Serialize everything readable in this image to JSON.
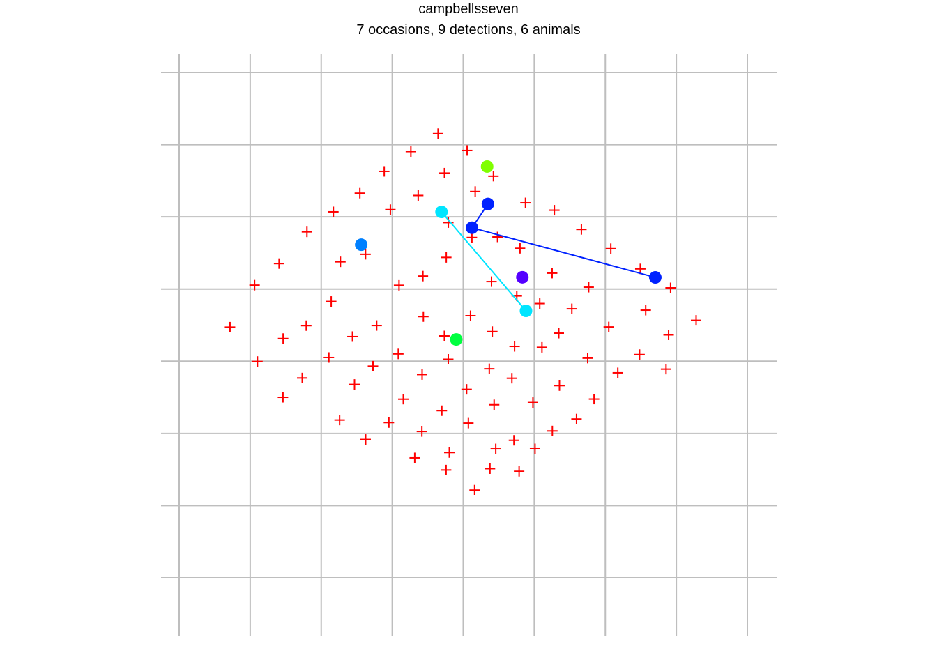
{
  "chart_data": {
    "type": "scatter",
    "title": "campbellsseven",
    "subtitle": "7 occasions, 9 detections, 6 animals",
    "grid": true,
    "xlim": [
      0,
      1
    ],
    "ylim": [
      0,
      1
    ],
    "trap_color": "#ff0000",
    "grid_color": "#bebebe",
    "traps": [
      [
        0.4557,
        0.8789
      ],
      [
        0.5068,
        0.8456
      ],
      [
        0.4078,
        0.8434
      ],
      [
        0.4669,
        0.8008
      ],
      [
        0.3609,
        0.8042
      ],
      [
        0.5531,
        0.7947
      ],
      [
        0.4207,
        0.7566
      ],
      [
        0.521,
        0.7644
      ],
      [
        0.318,
        0.7611
      ],
      [
        0.6095,
        0.742
      ],
      [
        0.2714,
        0.7242
      ],
      [
        0.3717,
        0.7286
      ],
      [
        0.6603,
        0.7275
      ],
      [
        0.7079,
        0.6894
      ],
      [
        0.4737,
        0.7029
      ],
      [
        0.2249,
        0.6846
      ],
      [
        0.5603,
        0.6745
      ],
      [
        0.5152,
        0.6734
      ],
      [
        0.5999,
        0.652
      ],
      [
        0.7597,
        0.6513
      ],
      [
        0.4701,
        0.634
      ],
      [
        0.328,
        0.6402
      ],
      [
        0.2838,
        0.6253
      ],
      [
        0.8116,
        0.6113
      ],
      [
        0.1759,
        0.6218
      ],
      [
        0.6564,
        0.6029
      ],
      [
        0.429,
        0.597
      ],
      [
        0.5497,
        0.5861
      ],
      [
        0.387,
        0.5788
      ],
      [
        0.7207,
        0.5751
      ],
      [
        0.1327,
        0.5791
      ],
      [
        0.8649,
        0.5738
      ],
      [
        0.5942,
        0.5578
      ],
      [
        0.6346,
        0.5427
      ],
      [
        0.2676,
        0.5468
      ],
      [
        0.6911,
        0.5323
      ],
      [
        0.8211,
        0.5296
      ],
      [
        0.5128,
        0.5186
      ],
      [
        0.4298,
        0.5169
      ],
      [
        0.2237,
        0.499
      ],
      [
        0.3476,
        0.4992
      ],
      [
        0.9098,
        0.5095
      ],
      [
        0.7561,
        0.4964
      ],
      [
        0.0895,
        0.496
      ],
      [
        0.5511,
        0.4872
      ],
      [
        0.6681,
        0.4841
      ],
      [
        0.8614,
        0.4807
      ],
      [
        0.305,
        0.4773
      ],
      [
        0.4668,
        0.4786
      ],
      [
        0.183,
        0.4734
      ],
      [
        0.5903,
        0.4579
      ],
      [
        0.6385,
        0.456
      ],
      [
        0.3857,
        0.443
      ],
      [
        0.2635,
        0.4359
      ],
      [
        0.8103,
        0.4417
      ],
      [
        0.1378,
        0.428
      ],
      [
        0.719,
        0.4347
      ],
      [
        0.4736,
        0.4324
      ],
      [
        0.3411,
        0.4188
      ],
      [
        0.5458,
        0.4136
      ],
      [
        0.8569,
        0.4129
      ],
      [
        0.4276,
        0.4022
      ],
      [
        0.772,
        0.4056
      ],
      [
        0.5856,
        0.3949
      ],
      [
        0.2166,
        0.3954
      ],
      [
        0.6693,
        0.3803
      ],
      [
        0.3086,
        0.3826
      ],
      [
        0.5059,
        0.3729
      ],
      [
        0.1827,
        0.3572
      ],
      [
        0.3945,
        0.3535
      ],
      [
        0.7302,
        0.3537
      ],
      [
        0.6226,
        0.3468
      ],
      [
        0.5543,
        0.3424
      ],
      [
        0.4623,
        0.3307
      ],
      [
        0.6993,
        0.3142
      ],
      [
        0.2824,
        0.3122
      ],
      [
        0.3691,
        0.3072
      ],
      [
        0.509,
        0.3061
      ],
      [
        0.4272,
        0.2895
      ],
      [
        0.6568,
        0.2906
      ],
      [
        0.5892,
        0.2721
      ],
      [
        0.3282,
        0.2737
      ],
      [
        0.5572,
        0.2551
      ],
      [
        0.6263,
        0.2552
      ],
      [
        0.4755,
        0.2479
      ],
      [
        0.4146,
        0.2373
      ],
      [
        0.547,
        0.2159
      ],
      [
        0.4698,
        0.2133
      ],
      [
        0.5983,
        0.2107
      ],
      [
        0.52,
        0.1735
      ]
    ],
    "detections": [
      {
        "animal": 1,
        "color": "#80ff00",
        "points": [
          [
            0.542,
            0.8138
          ]
        ]
      },
      {
        "animal": 2,
        "color": "#00ff40",
        "points": [
          [
            0.4876,
            0.4716
          ]
        ]
      },
      {
        "animal": 3,
        "color": "#00e5ff",
        "points": [
          [
            0.4617,
            0.7241
          ],
          [
            0.6104,
            0.5282
          ]
        ]
      },
      {
        "animal": 4,
        "color": "#0080ff",
        "points": [
          [
            0.3204,
            0.6591
          ]
        ]
      },
      {
        "animal": 5,
        "color": "#0022ff",
        "points": [
          [
            0.5434,
            0.7398
          ],
          [
            0.5154,
            0.6927
          ],
          [
            0.838,
            0.5944
          ]
        ]
      },
      {
        "animal": 6,
        "color": "#5500ff",
        "points": [
          [
            0.604,
            0.5947
          ]
        ]
      }
    ]
  }
}
